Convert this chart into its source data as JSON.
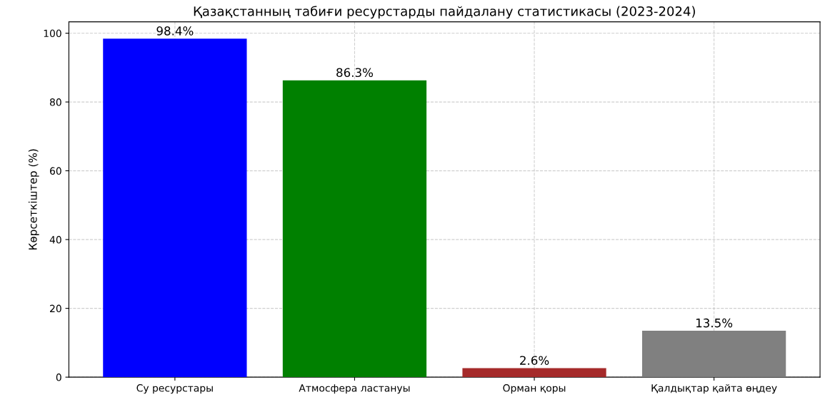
{
  "chart_data": {
    "type": "bar",
    "title": "Қазақстанның табиғи ресурстарды пайдалану статистикасы (2023-2024)",
    "ylabel": "Көрсеткіштер (%)",
    "categories": [
      "Су ресурстары",
      "Атмосфера ластануы",
      "Орман қоры",
      "Қалдықтар қайта өңдеу"
    ],
    "values": [
      98.4,
      86.3,
      2.6,
      13.5
    ],
    "colors": [
      "#0000ff",
      "#008000",
      "#a52a2a",
      "#808080"
    ],
    "value_labels": [
      "98.4%",
      "86.3%",
      "2.6%",
      "13.5%"
    ],
    "ylim": [
      0,
      103.3
    ],
    "yticks": [
      0,
      20,
      40,
      60,
      80,
      100
    ],
    "grid": true,
    "line_style": "dashed"
  }
}
